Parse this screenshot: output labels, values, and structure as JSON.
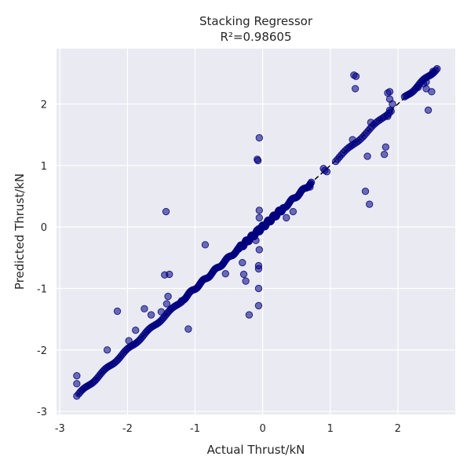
{
  "chart_data": {
    "type": "scatter",
    "title": "Stacking Regressor",
    "subtitle": "R²=0.98605",
    "xlabel": "Actual Thrust/kN",
    "ylabel": "Predicted Thrust/kN",
    "xlim": [
      -3.05,
      2.85
    ],
    "ylim": [
      -3.05,
      2.9
    ],
    "xticks": [
      -3,
      -2,
      -1,
      0,
      1,
      2
    ],
    "yticks": [
      -3,
      -2,
      -1,
      0,
      1,
      2
    ],
    "xtick_labels": [
      "-3",
      "-2",
      "-1",
      "0",
      "1",
      "2"
    ],
    "ytick_labels": [
      "-3",
      "-2",
      "-1",
      "0",
      "1",
      "2"
    ],
    "grid": true,
    "background": "#eaeaf2",
    "marker_color": "#000080",
    "reference_line": {
      "from": [
        -2.75,
        -2.75
      ],
      "to": [
        2.6,
        2.6
      ],
      "style": "dashed",
      "color": "#000000"
    },
    "diagonal_runs": [
      {
        "x_start": -2.72,
        "x_end": -1.2,
        "count": 70,
        "jitter": 0.02
      },
      {
        "x_start": -1.2,
        "x_end": -0.35,
        "count": 70,
        "jitter": 0.02
      },
      {
        "x_start": -0.35,
        "x_end": 0.3,
        "count": 120,
        "jitter": 0.03
      },
      {
        "x_start": 0.3,
        "x_end": 0.72,
        "count": 40,
        "jitter": 0.02
      },
      {
        "x_start": 1.08,
        "x_end": 1.9,
        "count": 30,
        "jitter": 0.02
      },
      {
        "x_start": 2.1,
        "x_end": 2.58,
        "count": 25,
        "jitter": 0.02
      }
    ],
    "points": [
      {
        "x": -2.75,
        "y": -2.42
      },
      {
        "x": -2.75,
        "y": -2.55
      },
      {
        "x": -2.75,
        "y": -2.75
      },
      {
        "x": -2.3,
        "y": -2.0
      },
      {
        "x": -2.15,
        "y": -1.37
      },
      {
        "x": -1.98,
        "y": -1.85
      },
      {
        "x": -1.88,
        "y": -1.68
      },
      {
        "x": -1.75,
        "y": -1.33
      },
      {
        "x": -1.65,
        "y": -1.43
      },
      {
        "x": -1.5,
        "y": -1.38
      },
      {
        "x": -1.43,
        "y": 0.25
      },
      {
        "x": -1.45,
        "y": -0.78
      },
      {
        "x": -1.38,
        "y": -0.77
      },
      {
        "x": -1.4,
        "y": -1.13
      },
      {
        "x": -1.42,
        "y": -1.25
      },
      {
        "x": -1.1,
        "y": -1.66
      },
      {
        "x": -0.85,
        "y": -0.29
      },
      {
        "x": -0.55,
        "y": -0.76
      },
      {
        "x": -0.3,
        "y": -0.58
      },
      {
        "x": -0.28,
        "y": -0.77
      },
      {
        "x": -0.25,
        "y": -0.88
      },
      {
        "x": -0.2,
        "y": -1.43
      },
      {
        "x": -0.1,
        "y": -0.22
      },
      {
        "x": -0.08,
        "y": 1.1
      },
      {
        "x": -0.07,
        "y": 1.08
      },
      {
        "x": -0.05,
        "y": 1.45
      },
      {
        "x": -0.05,
        "y": 0.27
      },
      {
        "x": -0.05,
        "y": 0.15
      },
      {
        "x": -0.06,
        "y": -0.03
      },
      {
        "x": -0.05,
        "y": -0.37
      },
      {
        "x": -0.06,
        "y": -0.63
      },
      {
        "x": -0.06,
        "y": -0.68
      },
      {
        "x": -0.06,
        "y": -1.0
      },
      {
        "x": -0.06,
        "y": -1.28
      },
      {
        "x": 0.45,
        "y": 0.25
      },
      {
        "x": 0.35,
        "y": 0.15
      },
      {
        "x": 0.7,
        "y": 0.65
      },
      {
        "x": 0.9,
        "y": 0.95
      },
      {
        "x": 0.95,
        "y": 0.9
      },
      {
        "x": 0.92,
        "y": 0.92
      },
      {
        "x": 1.35,
        "y": 2.47
      },
      {
        "x": 1.38,
        "y": 2.45
      },
      {
        "x": 1.37,
        "y": 2.25
      },
      {
        "x": 1.33,
        "y": 1.42
      },
      {
        "x": 1.52,
        "y": 0.58
      },
      {
        "x": 1.58,
        "y": 0.37
      },
      {
        "x": 1.55,
        "y": 1.15
      },
      {
        "x": 1.6,
        "y": 1.7
      },
      {
        "x": 1.8,
        "y": 1.18
      },
      {
        "x": 1.82,
        "y": 1.3
      },
      {
        "x": 1.85,
        "y": 1.8
      },
      {
        "x": 1.85,
        "y": 2.18
      },
      {
        "x": 1.88,
        "y": 2.2
      },
      {
        "x": 1.88,
        "y": 2.08
      },
      {
        "x": 1.92,
        "y": 2.0
      },
      {
        "x": 1.88,
        "y": 1.9
      },
      {
        "x": 2.3,
        "y": 2.27
      },
      {
        "x": 2.42,
        "y": 2.25
      },
      {
        "x": 2.45,
        "y": 1.9
      },
      {
        "x": 2.5,
        "y": 2.2
      },
      {
        "x": 2.48,
        "y": 2.47
      },
      {
        "x": 2.42,
        "y": 2.36
      },
      {
        "x": 2.38,
        "y": 2.33
      },
      {
        "x": 2.52,
        "y": 2.53
      }
    ]
  }
}
